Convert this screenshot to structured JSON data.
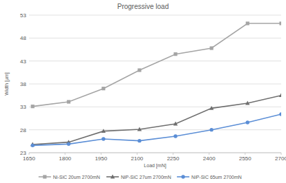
{
  "chart_data": {
    "type": "line",
    "title": "Progressive load",
    "x_label": "Load [mN]",
    "y_label": "Width [µm]",
    "x": [
      1665,
      1815,
      1960,
      2110,
      2260,
      2410,
      2560,
      2700
    ],
    "series": [
      {
        "name": "Ni-SiC 20um 2700mN",
        "color": "#a5a5a5",
        "marker": "square",
        "line_style": "solid",
        "values": [
          33.1,
          34.1,
          37.0,
          41.0,
          44.5,
          45.8,
          51.2,
          51.2
        ]
      },
      {
        "name": "NiP-SiC 27um 2700mN",
        "color": "#6f6f6f",
        "marker": "triangle",
        "line_style": "solid",
        "values": [
          24.8,
          25.3,
          27.7,
          28.1,
          29.3,
          32.7,
          33.8,
          35.5
        ]
      },
      {
        "name": "NiP-SiC 65um 2700mN",
        "color": "#5b8ed6",
        "marker": "circle",
        "line_style": "solid",
        "values": [
          24.6,
          24.9,
          26.0,
          25.6,
          26.6,
          28.0,
          29.6,
          31.4
        ]
      }
    ],
    "xlim": [
      1650,
      2700
    ],
    "xticks": [
      1650,
      1800,
      1950,
      2100,
      2250,
      2400,
      2550,
      2700
    ],
    "ylim": [
      23,
      53
    ],
    "yticks": [
      23,
      28,
      33,
      38,
      43,
      48,
      53
    ],
    "grid": true,
    "legend": "bottom"
  }
}
